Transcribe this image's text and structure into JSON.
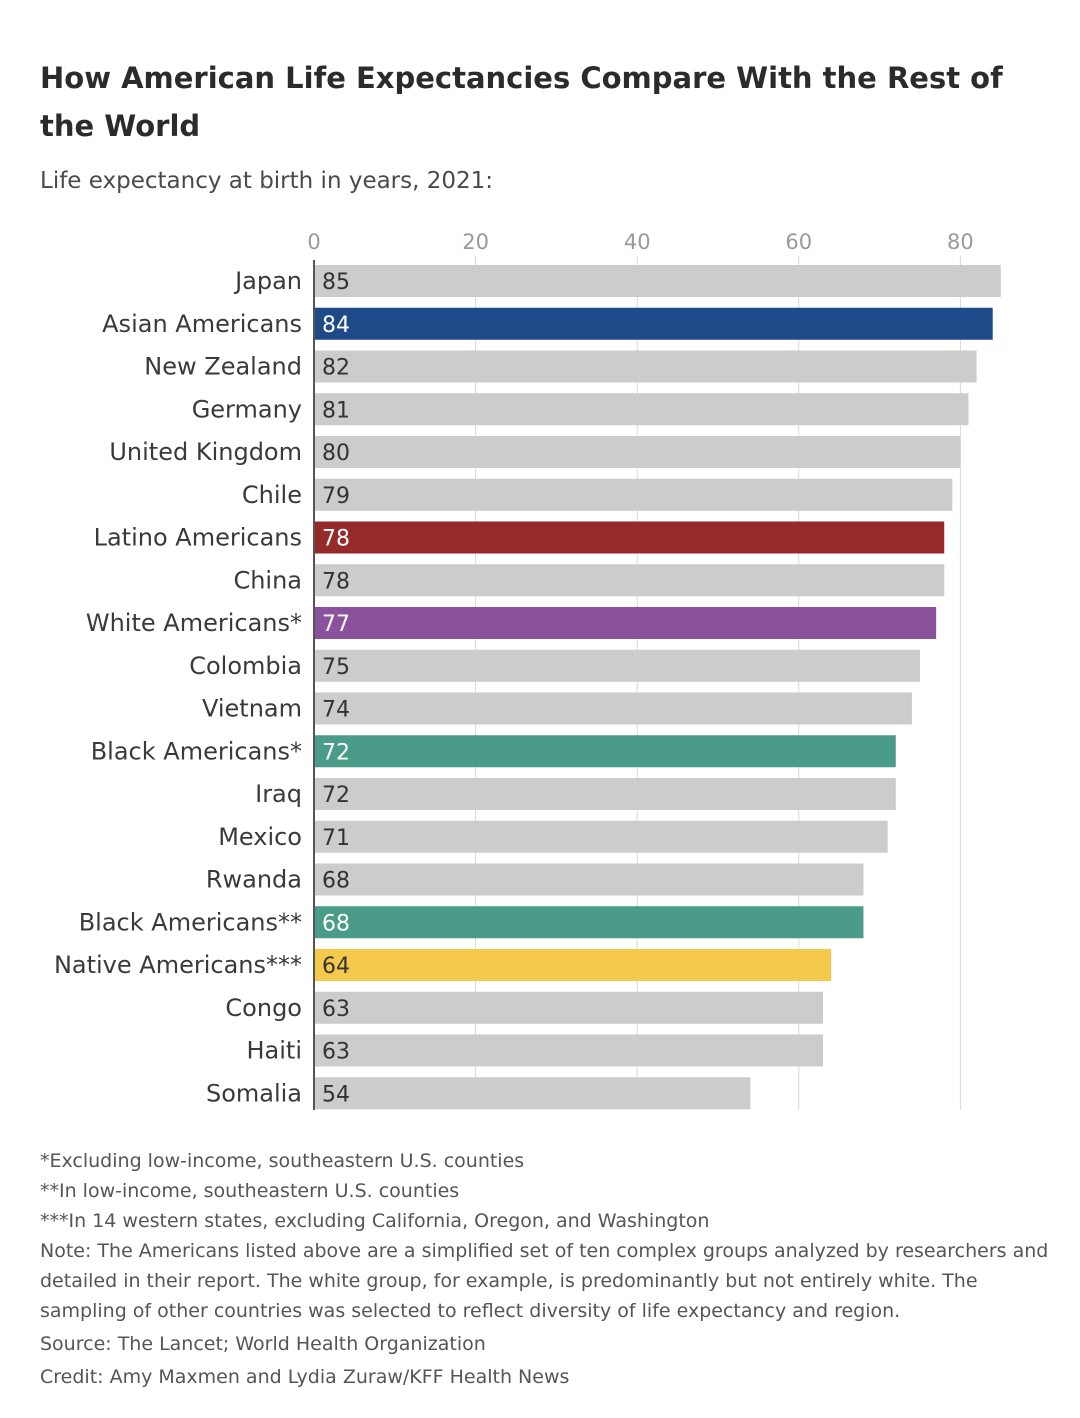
{
  "title": "How American Life Expectancies Compare With the Rest of the World",
  "subtitle": "Life expectancy at birth in years, 2021:",
  "chart_data": {
    "type": "bar",
    "orientation": "horizontal",
    "title": "How American Life Expectancies Compare With the Rest of the World",
    "subtitle": "Life expectancy at birth in years, 2021:",
    "xlabel": "",
    "ylabel": "",
    "xlim": [
      0,
      85
    ],
    "xticks": [
      0,
      20,
      40,
      60,
      80
    ],
    "grid": true,
    "legend": "none",
    "default_color": "#cccccc",
    "categories": [
      "Japan",
      "Asian Americans",
      "New Zealand",
      "Germany",
      "United Kingdom",
      "Chile",
      "Latino Americans",
      "China",
      "White Americans*",
      "Colombia",
      "Vietnam",
      "Black Americans*",
      "Iraq",
      "Mexico",
      "Rwanda",
      "Black Americans**",
      "Native Americans***",
      "Congo",
      "Haiti",
      "Somalia"
    ],
    "values": [
      85,
      84,
      82,
      81,
      80,
      79,
      78,
      78,
      77,
      75,
      74,
      72,
      72,
      71,
      68,
      68,
      64,
      63,
      63,
      54
    ],
    "highlights": {
      "Asian Americans": "#1f4a8a",
      "Latino Americans": "#962a2a",
      "White Americans*": "#8a519c",
      "Black Americans*": "#4a9c88",
      "Black Americans**": "#4a9c88",
      "Native Americans***": "#f5c94c"
    }
  },
  "footnotes": [
    "*Excluding low-income, southeastern U.S. counties",
    "**In low-income, southeastern U.S. counties",
    "***In 14 western states, excluding California, Oregon, and Washington"
  ],
  "note": "Note: The Americans listed above are a simplified set of ten complex groups analyzed by researchers and detailed in their report. The white group, for example, is predominantly but not entirely white. The sampling of other countries was selected to reflect diversity of life expectancy and region.",
  "source": "Source: The Lancet; World Health Organization",
  "credit": "Credit: Amy Maxmen and Lydia Zuraw/KFF Health News"
}
